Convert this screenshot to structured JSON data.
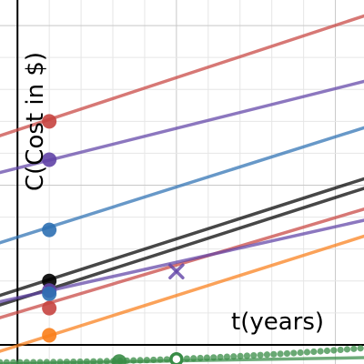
{
  "chart_data": {
    "type": "line",
    "title": "",
    "xlabel": "t(years)",
    "ylabel": "C(Cost in $)",
    "xlim": [
      -0.55,
      10.9
    ],
    "ylim": [
      -0.6,
      10.8
    ],
    "grid": true,
    "minor_grid": true,
    "major_grid_step": 5,
    "colors": {
      "red": "#c74440",
      "purple": "#6042a6",
      "blue": "#2d70b3",
      "black": "#000000",
      "orange": "#fa7e19",
      "green": "#388c46",
      "axis": "#000000",
      "grid_minor": "#e6e6e6",
      "grid_major": "#c8c8c8"
    },
    "series": [
      {
        "color": "red",
        "x": [
          -0.55,
          10.9
        ],
        "y": [
          6.55,
          10.3
        ]
      },
      {
        "color": "purple",
        "x": [
          -0.55,
          10.9
        ],
        "y": [
          5.4,
          8.25
        ]
      },
      {
        "color": "blue",
        "x": [
          -0.55,
          10.9
        ],
        "y": [
          3.2,
          6.8
        ]
      },
      {
        "color": "black",
        "x": [
          -0.55,
          10.9
        ],
        "y": [
          1.55,
          5.2
        ]
      },
      {
        "color": "black",
        "x": [
          -0.55,
          10.9
        ],
        "y": [
          1.25,
          4.9
        ]
      },
      {
        "color": "red",
        "x": [
          -0.55,
          10.9
        ],
        "y": [
          0.85,
          4.25
        ]
      },
      {
        "color": "purple",
        "x": [
          -0.55,
          10.9
        ],
        "y": [
          1.35,
          3.9
        ]
      },
      {
        "color": "orange",
        "x": [
          -0.55,
          10.9
        ],
        "y": [
          -0.2,
          3.4
        ]
      },
      {
        "color": "green",
        "x": [
          -0.55,
          10.9
        ],
        "y": [
          -0.6,
          -0.4
        ]
      }
    ],
    "points": [
      {
        "color": "red",
        "x": 1,
        "y": 7.0,
        "style": "filled"
      },
      {
        "color": "purple",
        "x": 1,
        "y": 5.8,
        "style": "filled"
      },
      {
        "color": "blue",
        "x": 1,
        "y": 3.6,
        "style": "filled"
      },
      {
        "color": "black",
        "x": 1,
        "y": 2.0,
        "style": "filled"
      },
      {
        "color": "purple",
        "x": 1,
        "y": 1.7,
        "style": "filled"
      },
      {
        "color": "blue",
        "x": 1,
        "y": 1.6,
        "style": "filled"
      },
      {
        "color": "red",
        "x": 1,
        "y": 1.15,
        "style": "filled"
      },
      {
        "color": "orange",
        "x": 1,
        "y": 0.3,
        "style": "filled"
      },
      {
        "color": "green",
        "x": 3.2,
        "y": -0.52,
        "style": "filled"
      },
      {
        "color": "green",
        "x": 5,
        "y": -0.45,
        "style": "open"
      },
      {
        "color": "purple",
        "x": 5,
        "y": 2.3,
        "style": "cross"
      }
    ],
    "dotted_series": {
      "color": "green",
      "x_start": -0.55,
      "x_end": 10.9,
      "x_step": 0.21,
      "y_start": -0.55,
      "y_end": -0.1
    }
  }
}
